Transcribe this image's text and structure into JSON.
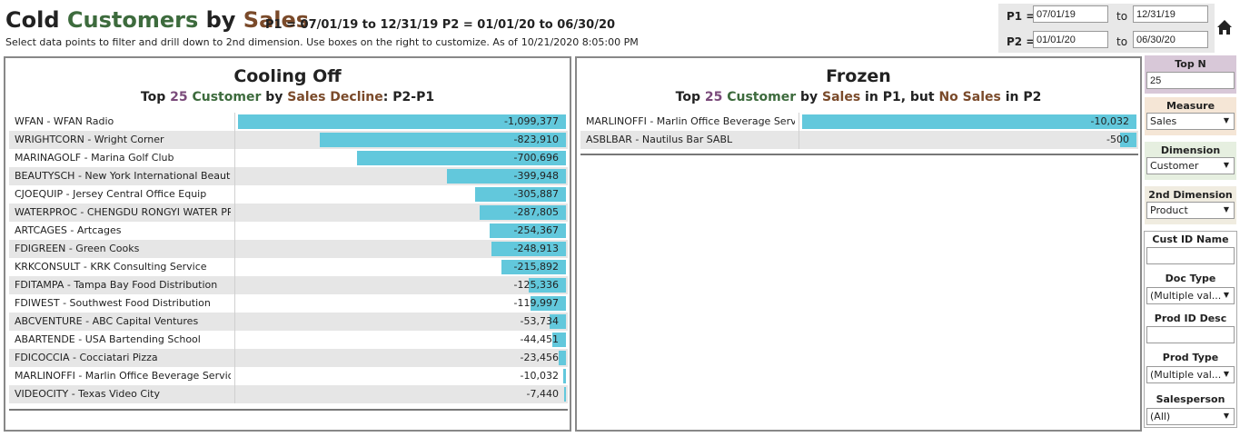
{
  "header": {
    "title_parts": [
      {
        "text": "Cold ",
        "color": "#222222"
      },
      {
        "text": "Customers",
        "color": "#3d6b3d"
      },
      {
        "text": " by ",
        "color": "#222222"
      },
      {
        "text": "Sales",
        "color": "#7a4a2a"
      }
    ],
    "period_text": "P1 = 07/01/19 to 12/31/19   P2 =  01/01/20 to  06/30/20",
    "subtitle": "Select data points to filter and drill down to 2nd dimension. Use boxes on the right to customize. As of",
    "as_of": "10/21/2020 8:05:00 PM"
  },
  "dates": {
    "p1_label": "P1 =",
    "p2_label": "P2 =",
    "to_label": "to",
    "p1_start": "07/01/19",
    "p1_end": "12/31/19",
    "p2_start": "01/01/20",
    "p2_end": "06/30/20"
  },
  "cooling": {
    "title": "Cooling Off",
    "subtitle_parts": [
      {
        "text": "Top ",
        "color": "#222222"
      },
      {
        "text": "25",
        "color": "#7a4a7a"
      },
      {
        "text": " Customer",
        "color": "#3d6b3d"
      },
      {
        "text": " by ",
        "color": "#222222"
      },
      {
        "text": "Sales Decline",
        "color": "#7a4a2a"
      },
      {
        "text": ": P2-P1",
        "color": "#222222"
      }
    ],
    "rows": [
      {
        "label": "WFAN  -  WFAN Radio",
        "value": -1099377,
        "display": "-1,099,377"
      },
      {
        "label": "WRIGHTCORN  -  Wright Corner",
        "value": -823910,
        "display": "-823,910"
      },
      {
        "label": "MARINAGOLF  -  Marina Golf Club",
        "value": -700696,
        "display": "-700,696"
      },
      {
        "label": "BEAUTYSCH  -  New York International Beauty..",
        "value": -399948,
        "display": "-399,948"
      },
      {
        "label": "CJOEQUIP  -  Jersey Central Office Equip",
        "value": -305887,
        "display": "-305,887"
      },
      {
        "label": "WATERPROC  -  CHENGDU RONGYI WATER PR..",
        "value": -287805,
        "display": "-287,805"
      },
      {
        "label": "ARTCAGES  -  Artcages",
        "value": -254367,
        "display": "-254,367"
      },
      {
        "label": "FDIGREEN  -  Green Cooks",
        "value": -248913,
        "display": "-248,913"
      },
      {
        "label": "KRKCONSULT  -  KRK Consulting Service",
        "value": -215892,
        "display": "-215,892"
      },
      {
        "label": "FDITAMPA  -  Tampa Bay Food Distribution",
        "value": -125336,
        "display": "-125,336"
      },
      {
        "label": "FDIWEST  -  Southwest Food Distribution",
        "value": -119997,
        "display": "-119,997"
      },
      {
        "label": "ABCVENTURE  -  ABC Capital Ventures",
        "value": -53734,
        "display": "-53,734"
      },
      {
        "label": "ABARTENDE  -  USA Bartending School",
        "value": -44451,
        "display": "-44,451"
      },
      {
        "label": "FDICOCCIA  -  Cocciatari Pizza",
        "value": -23456,
        "display": "-23,456"
      },
      {
        "label": "MARLINOFFI  -  Marlin Office Beverage Service",
        "value": -10032,
        "display": "-10,032"
      },
      {
        "label": "VIDEOCITY  -  Texas Video City",
        "value": -7440,
        "display": "-7,440"
      }
    ]
  },
  "frozen": {
    "title": "Frozen",
    "subtitle_parts": [
      {
        "text": "Top ",
        "color": "#222222"
      },
      {
        "text": "25",
        "color": "#7a4a7a"
      },
      {
        "text": " Customer",
        "color": "#3d6b3d"
      },
      {
        "text": " by ",
        "color": "#222222"
      },
      {
        "text": "Sales",
        "color": "#7a4a2a"
      },
      {
        "text": " in P1, but ",
        "color": "#222222"
      },
      {
        "text": "No Sales",
        "color": "#7a4a2a"
      },
      {
        "text": " in P2",
        "color": "#222222"
      }
    ],
    "rows": [
      {
        "label": "MARLINOFFI  -  Marlin Office Beverage Servi..",
        "value": -10032,
        "display": "-10,032"
      },
      {
        "label": "ASBLBAR  -  Nautilus Bar SABL",
        "value": -500,
        "display": "-500"
      }
    ]
  },
  "filters": {
    "top_n_label": "Top N",
    "top_n_value": "25",
    "measure_label": "Measure",
    "measure_value": "Sales",
    "dimension_label": "Dimension",
    "dimension_value": "Customer",
    "dimension2_label": "2nd Dimension",
    "dimension2_value": "Product",
    "cust_id_label": "Cust ID Name",
    "doc_type_label": "Doc Type",
    "doc_type_value": "(Multiple val...",
    "prod_id_label": "Prod ID Desc",
    "prod_type_label": "Prod Type",
    "prod_type_value": "(Multiple val...",
    "salesperson_label": "Salesperson",
    "salesperson_value": "(All)",
    "colors": {
      "top_n": "#d8c8d8",
      "measure": "#f5e6d6",
      "dimension": "#e6efe0",
      "dimension2": "#f0ece0"
    }
  },
  "colors": {
    "bar": "#62c8dc",
    "alt_row": "#e6e6e6"
  }
}
